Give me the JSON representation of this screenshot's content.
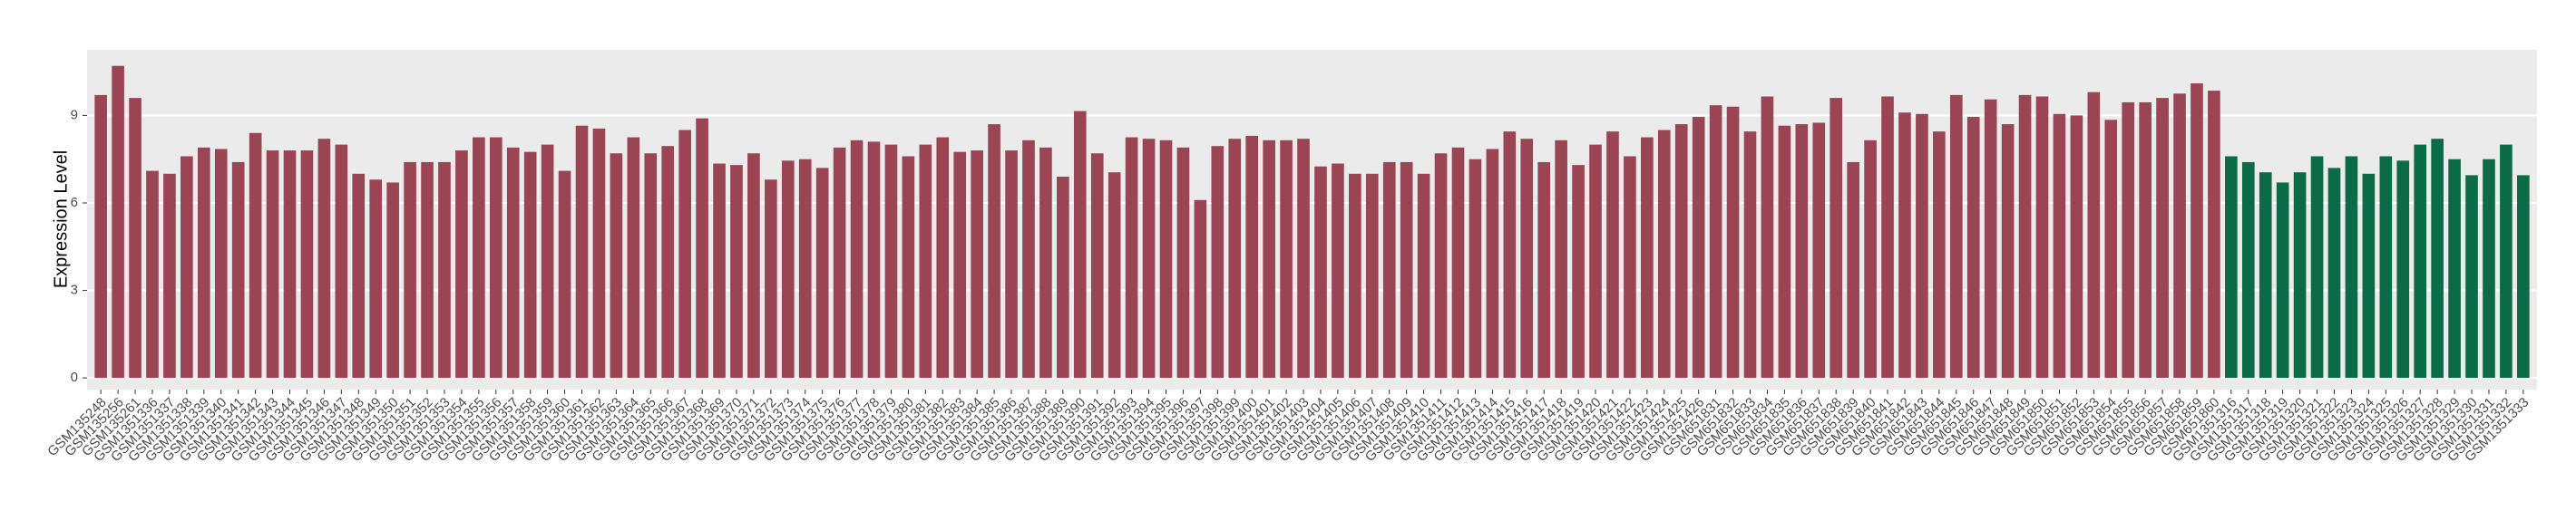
{
  "chart_data": {
    "type": "bar",
    "y_label": "Expression Level",
    "ylim": [
      -0.4,
      11.25
    ],
    "yticks": [
      0,
      3,
      6,
      9
    ],
    "grid": true,
    "background": "#ebebeb",
    "series": [
      {
        "color": "#9b4453",
        "categories": [
          "GSM135248",
          "GSM135256",
          "GSM135261",
          "GSM1351336",
          "GSM1351337",
          "GSM1351338",
          "GSM1351339",
          "GSM1351340",
          "GSM1351341",
          "GSM1351342",
          "GSM1351343",
          "GSM1351344",
          "GSM1351345",
          "GSM1351346",
          "GSM1351347",
          "GSM1351348",
          "GSM1351349",
          "GSM1351350",
          "GSM1351351",
          "GSM1351352",
          "GSM1351353",
          "GSM1351354",
          "GSM1351355",
          "GSM1351356",
          "GSM1351357",
          "GSM1351358",
          "GSM1351359",
          "GSM1351360",
          "GSM1351361",
          "GSM1351362",
          "GSM1351363",
          "GSM1351364",
          "GSM1351365",
          "GSM1351366",
          "GSM1351367",
          "GSM1351368",
          "GSM1351369",
          "GSM1351370",
          "GSM1351371",
          "GSM1351372",
          "GSM1351373",
          "GSM1351374",
          "GSM1351375",
          "GSM1351376",
          "GSM1351377",
          "GSM1351378",
          "GSM1351379",
          "GSM1351380",
          "GSM1351381",
          "GSM1351382",
          "GSM1351383",
          "GSM1351384",
          "GSM1351385",
          "GSM1351386",
          "GSM1351387",
          "GSM1351388",
          "GSM1351389",
          "GSM1351390",
          "GSM1351391",
          "GSM1351392",
          "GSM1351393",
          "GSM1351394",
          "GSM1351395",
          "GSM1351396",
          "GSM1351397",
          "GSM1351398",
          "GSM1351399",
          "GSM1351400",
          "GSM1351401",
          "GSM1351402",
          "GSM1351403",
          "GSM1351404",
          "GSM1351405",
          "GSM1351406",
          "GSM1351407",
          "GSM1351408",
          "GSM1351409",
          "GSM1351410",
          "GSM1351411",
          "GSM1351412",
          "GSM1351413",
          "GSM1351414",
          "GSM1351415",
          "GSM1351416",
          "GSM1351417",
          "GSM1351418",
          "GSM1351419",
          "GSM1351420",
          "GSM1351421",
          "GSM1351422",
          "GSM1351423",
          "GSM1351424",
          "GSM1351425",
          "GSM1351426",
          "GSM651831",
          "GSM651832",
          "GSM651833",
          "GSM651834",
          "GSM651835",
          "GSM651836",
          "GSM651837",
          "GSM651838",
          "GSM651839",
          "GSM651840",
          "GSM651841",
          "GSM651842",
          "GSM651843",
          "GSM651844",
          "GSM651845",
          "GSM651846",
          "GSM651847",
          "GSM651848",
          "GSM651849",
          "GSM651850",
          "GSM651851",
          "GSM651852",
          "GSM651853",
          "GSM651854",
          "GSM651855",
          "GSM651856",
          "GSM651857",
          "GSM651858",
          "GSM651859",
          "GSM651860"
        ],
        "values": [
          9.7,
          10.7,
          9.6,
          7.1,
          7.0,
          7.6,
          7.9,
          7.85,
          7.4,
          8.4,
          7.8,
          7.8,
          7.8,
          8.2,
          8.0,
          7.0,
          6.8,
          6.7,
          7.4,
          7.4,
          7.4,
          7.8,
          8.25,
          8.25,
          7.9,
          7.75,
          8.0,
          7.1,
          8.65,
          8.55,
          7.7,
          8.25,
          7.7,
          7.95,
          8.5,
          8.9,
          7.35,
          7.3,
          7.7,
          6.8,
          7.45,
          7.5,
          7.2,
          7.9,
          8.15,
          8.1,
          8.0,
          7.6,
          8.0,
          8.25,
          7.75,
          7.8,
          8.7,
          7.8,
          8.15,
          7.9,
          6.9,
          9.15,
          7.7,
          7.05,
          8.25,
          8.2,
          8.15,
          7.9,
          6.1,
          7.95,
          8.2,
          8.3,
          8.15,
          8.15,
          8.2,
          7.25,
          7.35,
          7.0,
          7.0,
          7.4,
          7.4,
          7.0,
          7.7,
          7.9,
          7.5,
          7.85,
          8.45,
          8.2,
          7.4,
          8.15,
          7.3,
          8.0,
          8.45,
          7.6,
          8.25,
          8.5,
          8.7,
          8.95,
          9.35,
          9.3,
          8.45,
          9.65,
          8.65,
          8.7,
          8.75,
          9.6,
          7.4,
          8.15,
          9.65,
          9.1,
          9.05,
          8.45,
          9.7,
          8.95,
          9.55,
          8.7,
          9.7,
          9.65,
          9.05,
          9.0,
          9.8,
          8.85,
          9.45,
          9.45,
          9.6,
          9.75,
          10.1,
          9.85
        ]
      },
      {
        "color": "#0b6b47",
        "categories": [
          "GSM1351316",
          "GSM1351317",
          "GSM1351318",
          "GSM1351319",
          "GSM1351320",
          "GSM1351321",
          "GSM1351322",
          "GSM1351323",
          "GSM1351324",
          "GSM1351325",
          "GSM1351326",
          "GSM1351327",
          "GSM1351328",
          "GSM1351329",
          "GSM1351330",
          "GSM1351331",
          "GSM1351332",
          "GSM1351333"
        ],
        "values": [
          7.6,
          7.4,
          7.05,
          6.7,
          7.05,
          7.6,
          7.2,
          7.6,
          7.0,
          7.6,
          7.45,
          8.0,
          8.2,
          7.5,
          6.95,
          7.5,
          8.0,
          6.95
        ]
      }
    ]
  }
}
